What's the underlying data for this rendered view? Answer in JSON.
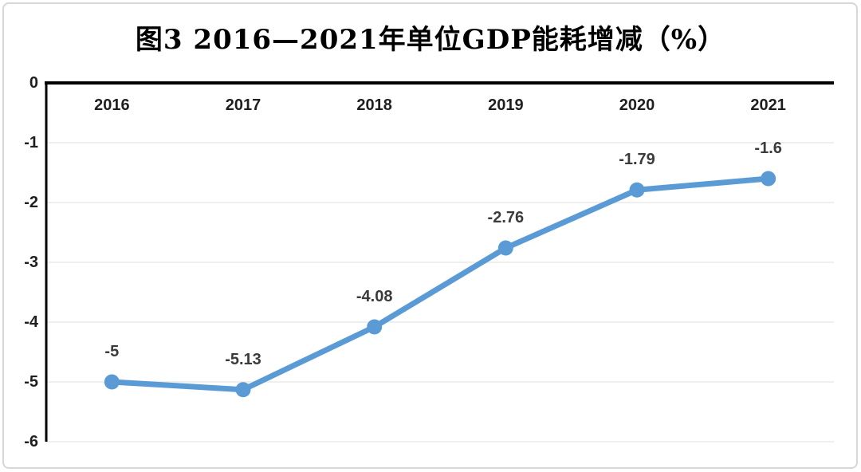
{
  "title": "图3 2016—2021年单位GDP能耗增减（%）",
  "chart_data": {
    "type": "line",
    "title": "图3 2016—2021年单位GDP能耗增减（%）",
    "categories": [
      "2016",
      "2017",
      "2018",
      "2019",
      "2020",
      "2021"
    ],
    "values": [
      -5,
      -5.13,
      -4.08,
      -2.76,
      -1.79,
      -1.6
    ],
    "labels": [
      "-5",
      "-5.13",
      "-4.08",
      "-2.76",
      "-1.79",
      "-1.6"
    ],
    "yticks": [
      "0",
      "-1",
      "-2",
      "-3",
      "-4",
      "-5",
      "-6"
    ],
    "ylim": [
      -6,
      0
    ],
    "xlabel": "",
    "ylabel": "",
    "grid": true,
    "legend": "none",
    "line_color": "#5B9BD5",
    "marker_color": "#5B9BD5",
    "gridline_color": "#efefef",
    "axis_color": "#000000",
    "frame_border_color": "#d7d7d7",
    "label_color": "#3b3b3b"
  }
}
